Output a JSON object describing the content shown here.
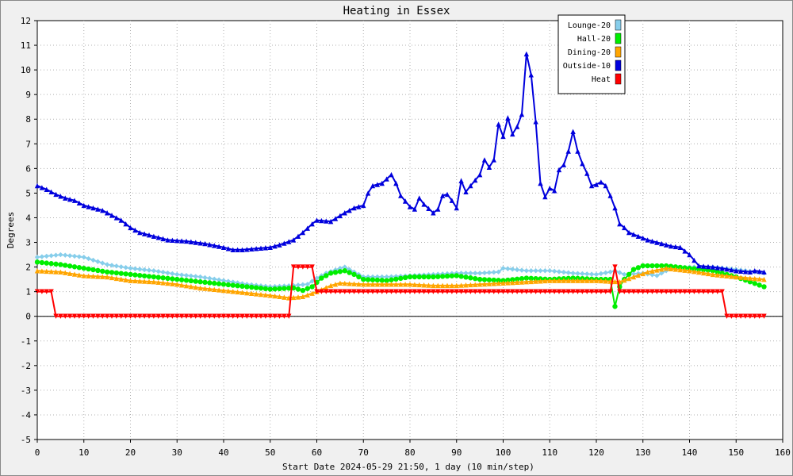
{
  "chart_data": {
    "type": "line",
    "title": "Heating in Essex",
    "xlabel": "Start Date 2024-05-29 21:50, 1 day (10 min/step)",
    "ylabel": "Degrees",
    "xlim": [
      0,
      160
    ],
    "ylim": [
      -5,
      12
    ],
    "xticks": [
      0,
      10,
      20,
      30,
      40,
      50,
      60,
      70,
      80,
      90,
      100,
      110,
      120,
      130,
      140,
      150,
      160
    ],
    "yticks": [
      -5,
      -4,
      -3,
      -2,
      -1,
      0,
      1,
      2,
      3,
      4,
      5,
      6,
      7,
      8,
      9,
      10,
      11,
      12
    ],
    "grid": true,
    "legend_position": "top-right",
    "series": [
      {
        "name": "Lounge-20",
        "color": "#87ceeb",
        "marker": "diamond",
        "points": [
          [
            0,
            2.4
          ],
          [
            5,
            2.5
          ],
          [
            10,
            2.4
          ],
          [
            15,
            2.1
          ],
          [
            20,
            1.95
          ],
          [
            25,
            1.85
          ],
          [
            30,
            1.7
          ],
          [
            35,
            1.6
          ],
          [
            40,
            1.45
          ],
          [
            45,
            1.3
          ],
          [
            50,
            1.2
          ],
          [
            55,
            1.25
          ],
          [
            58,
            1.3
          ],
          [
            60,
            1.55
          ],
          [
            62,
            1.75
          ],
          [
            65,
            1.95
          ],
          [
            66,
            2.0
          ],
          [
            68,
            1.8
          ],
          [
            70,
            1.6
          ],
          [
            75,
            1.6
          ],
          [
            80,
            1.65
          ],
          [
            85,
            1.7
          ],
          [
            90,
            1.75
          ],
          [
            95,
            1.75
          ],
          [
            99,
            1.8
          ],
          [
            100,
            1.95
          ],
          [
            105,
            1.85
          ],
          [
            110,
            1.85
          ],
          [
            115,
            1.75
          ],
          [
            120,
            1.7
          ],
          [
            123,
            1.8
          ],
          [
            124,
            1.85
          ],
          [
            126,
            1.7
          ],
          [
            130,
            1.75
          ],
          [
            133,
            1.65
          ],
          [
            136,
            1.95
          ],
          [
            140,
            2.0
          ],
          [
            145,
            2.0
          ],
          [
            150,
            1.9
          ],
          [
            156,
            1.75
          ]
        ]
      },
      {
        "name": "Hall-20",
        "color": "#00ee00",
        "marker": "circle",
        "points": [
          [
            0,
            2.2
          ],
          [
            5,
            2.1
          ],
          [
            10,
            1.95
          ],
          [
            15,
            1.8
          ],
          [
            20,
            1.7
          ],
          [
            25,
            1.6
          ],
          [
            30,
            1.5
          ],
          [
            35,
            1.4
          ],
          [
            40,
            1.3
          ],
          [
            45,
            1.2
          ],
          [
            50,
            1.1
          ],
          [
            55,
            1.15
          ],
          [
            57,
            1.05
          ],
          [
            59,
            1.2
          ],
          [
            61,
            1.55
          ],
          [
            63,
            1.75
          ],
          [
            66,
            1.85
          ],
          [
            68,
            1.7
          ],
          [
            70,
            1.5
          ],
          [
            75,
            1.45
          ],
          [
            80,
            1.6
          ],
          [
            85,
            1.6
          ],
          [
            90,
            1.65
          ],
          [
            95,
            1.5
          ],
          [
            100,
            1.45
          ],
          [
            105,
            1.55
          ],
          [
            110,
            1.5
          ],
          [
            115,
            1.55
          ],
          [
            120,
            1.5
          ],
          [
            123,
            1.5
          ],
          [
            124,
            0.4
          ],
          [
            125,
            1.2
          ],
          [
            126,
            1.5
          ],
          [
            128,
            1.9
          ],
          [
            130,
            2.05
          ],
          [
            135,
            2.05
          ],
          [
            140,
            1.95
          ],
          [
            145,
            1.85
          ],
          [
            150,
            1.6
          ],
          [
            153,
            1.4
          ],
          [
            156,
            1.2
          ]
        ]
      },
      {
        "name": "Dining-20",
        "color": "#ffa500",
        "marker": "triangle",
        "points": [
          [
            0,
            1.85
          ],
          [
            5,
            1.8
          ],
          [
            10,
            1.65
          ],
          [
            15,
            1.6
          ],
          [
            20,
            1.45
          ],
          [
            25,
            1.4
          ],
          [
            30,
            1.3
          ],
          [
            35,
            1.15
          ],
          [
            40,
            1.05
          ],
          [
            45,
            0.95
          ],
          [
            50,
            0.85
          ],
          [
            54,
            0.75
          ],
          [
            57,
            0.8
          ],
          [
            60,
            1.0
          ],
          [
            63,
            1.25
          ],
          [
            65,
            1.35
          ],
          [
            70,
            1.3
          ],
          [
            75,
            1.3
          ],
          [
            80,
            1.3
          ],
          [
            85,
            1.25
          ],
          [
            90,
            1.25
          ],
          [
            95,
            1.3
          ],
          [
            100,
            1.35
          ],
          [
            105,
            1.4
          ],
          [
            110,
            1.45
          ],
          [
            115,
            1.45
          ],
          [
            120,
            1.45
          ],
          [
            125,
            1.4
          ],
          [
            128,
            1.6
          ],
          [
            131,
            1.8
          ],
          [
            135,
            1.95
          ],
          [
            140,
            1.85
          ],
          [
            145,
            1.7
          ],
          [
            150,
            1.6
          ],
          [
            156,
            1.5
          ]
        ]
      },
      {
        "name": "Outside-10",
        "color": "#0000dd",
        "marker": "triangle",
        "points": [
          [
            0,
            5.3
          ],
          [
            2,
            5.15
          ],
          [
            4,
            4.95
          ],
          [
            6,
            4.8
          ],
          [
            8,
            4.7
          ],
          [
            10,
            4.5
          ],
          [
            14,
            4.3
          ],
          [
            16,
            4.1
          ],
          [
            18,
            3.9
          ],
          [
            20,
            3.6
          ],
          [
            22,
            3.4
          ],
          [
            25,
            3.25
          ],
          [
            28,
            3.1
          ],
          [
            32,
            3.05
          ],
          [
            36,
            2.95
          ],
          [
            40,
            2.8
          ],
          [
            42,
            2.7
          ],
          [
            44,
            2.7
          ],
          [
            47,
            2.75
          ],
          [
            50,
            2.8
          ],
          [
            52,
            2.9
          ],
          [
            55,
            3.1
          ],
          [
            57,
            3.4
          ],
          [
            59,
            3.75
          ],
          [
            60,
            3.9
          ],
          [
            63,
            3.85
          ],
          [
            66,
            4.2
          ],
          [
            68,
            4.4
          ],
          [
            70,
            4.5
          ],
          [
            71,
            5.0
          ],
          [
            72,
            5.3
          ],
          [
            74,
            5.4
          ],
          [
            76,
            5.75
          ],
          [
            77,
            5.4
          ],
          [
            78,
            4.9
          ],
          [
            80,
            4.45
          ],
          [
            81,
            4.35
          ],
          [
            82,
            4.8
          ],
          [
            83,
            4.55
          ],
          [
            85,
            4.2
          ],
          [
            86,
            4.35
          ],
          [
            87,
            4.9
          ],
          [
            88,
            4.95
          ],
          [
            89,
            4.7
          ],
          [
            90,
            4.4
          ],
          [
            91,
            5.5
          ],
          [
            92,
            5.05
          ],
          [
            93,
            5.3
          ],
          [
            95,
            5.75
          ],
          [
            96,
            6.35
          ],
          [
            97,
            6.05
          ],
          [
            98,
            6.35
          ],
          [
            99,
            7.8
          ],
          [
            100,
            7.3
          ],
          [
            101,
            8.05
          ],
          [
            102,
            7.4
          ],
          [
            103,
            7.7
          ],
          [
            104,
            8.2
          ],
          [
            105,
            10.65
          ],
          [
            106,
            9.8
          ],
          [
            107,
            7.9
          ],
          [
            108,
            5.4
          ],
          [
            109,
            4.85
          ],
          [
            110,
            5.2
          ],
          [
            111,
            5.1
          ],
          [
            112,
            5.95
          ],
          [
            113,
            6.15
          ],
          [
            114,
            6.7
          ],
          [
            115,
            7.5
          ],
          [
            116,
            6.7
          ],
          [
            117,
            6.2
          ],
          [
            118,
            5.8
          ],
          [
            119,
            5.3
          ],
          [
            120,
            5.35
          ],
          [
            121,
            5.45
          ],
          [
            122,
            5.3
          ],
          [
            123,
            4.9
          ],
          [
            124,
            4.4
          ],
          [
            125,
            3.75
          ],
          [
            126,
            3.6
          ],
          [
            127,
            3.4
          ],
          [
            129,
            3.25
          ],
          [
            131,
            3.1
          ],
          [
            134,
            2.95
          ],
          [
            136,
            2.85
          ],
          [
            138,
            2.8
          ],
          [
            140,
            2.5
          ],
          [
            142,
            2.05
          ],
          [
            145,
            2.0
          ],
          [
            147,
            1.95
          ],
          [
            150,
            1.85
          ],
          [
            153,
            1.8
          ],
          [
            154,
            1.85
          ],
          [
            156,
            1.8
          ]
        ]
      },
      {
        "name": "Heat",
        "color": "#ff0000",
        "marker": "triangle-down",
        "points": [
          [
            0,
            1
          ],
          [
            3,
            1
          ],
          [
            4,
            0
          ],
          [
            54,
            0
          ],
          [
            55,
            2
          ],
          [
            59,
            2
          ],
          [
            60,
            1
          ],
          [
            123,
            1
          ],
          [
            124,
            2
          ],
          [
            125,
            1
          ],
          [
            147,
            1
          ],
          [
            148,
            0
          ],
          [
            156,
            0
          ]
        ]
      }
    ]
  }
}
